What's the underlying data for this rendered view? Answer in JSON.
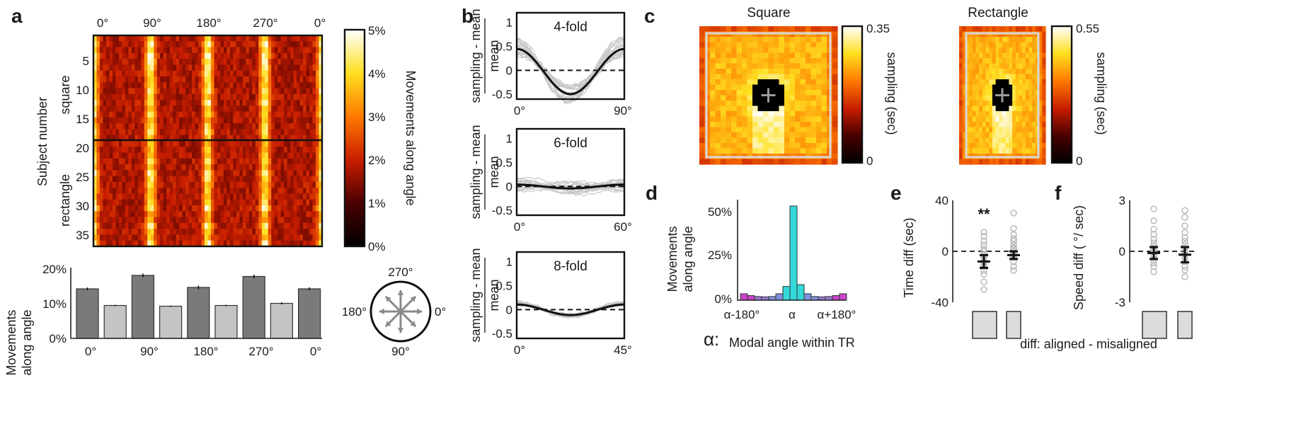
{
  "panels": {
    "a": "a",
    "b": "b",
    "c": "c",
    "d": "d",
    "e": "e",
    "f": "f"
  },
  "colors": {
    "dark_bar": "#7a7a7a",
    "light_bar": "#c4c4c4",
    "cyan": "#33d9d9",
    "magenta": "#cc44cc",
    "blue": "#7f90da",
    "trace": "#c8c8c8"
  },
  "chart_data": [
    {
      "id": "a-heatmap",
      "type": "heatmap",
      "top_ticks": [
        "0°",
        "90°",
        "180°",
        "270°",
        "0°"
      ],
      "ylabel": "Subject number",
      "group_labels": [
        "square",
        "rectangle"
      ],
      "y_ticks": [
        "5",
        "10",
        "15",
        "20",
        "25",
        "30",
        "35"
      ],
      "subjects": 36,
      "split_after": 18,
      "peak_angles_deg": [
        0,
        90,
        180,
        270,
        360
      ],
      "colorbar": {
        "ticks": [
          "5%",
          "4%",
          "3%",
          "2%",
          "1%",
          "0%"
        ],
        "label": "Movements along angle"
      }
    },
    {
      "id": "a-bar",
      "type": "bar",
      "ylabel": [
        "Movements",
        "along angle"
      ],
      "y_ticks": [
        "20%",
        "10%",
        "0%"
      ],
      "ylim": [
        0,
        20
      ],
      "categories": [
        "0°",
        "45°",
        "90°",
        "135°",
        "180°",
        "225°",
        "270°",
        "315°",
        "0°"
      ],
      "x_ticks": [
        "0°",
        "90°",
        "180°",
        "270°",
        "0°"
      ],
      "values": [
        14.0,
        9.3,
        17.8,
        9.1,
        14.4,
        9.3,
        17.5,
        9.9,
        14.0
      ],
      "errors": [
        0.4,
        0.2,
        0.5,
        0.2,
        0.5,
        0.2,
        0.5,
        0.3,
        0.4
      ],
      "compass": {
        "top": "270°",
        "left": "180°",
        "right": "0°",
        "bottom": "90°"
      }
    },
    {
      "id": "b-folds",
      "type": "line",
      "ylabel": [
        "sampling - mean",
        "mean"
      ],
      "y_ticks": [
        "1",
        "0.5",
        "0",
        "-0.5"
      ],
      "ylim": [
        -0.6,
        1.2
      ],
      "plots": [
        {
          "title": "4-fold",
          "x_ticks": [
            "0°",
            "90°"
          ],
          "amplitude": 0.47,
          "offset": 0.13
        },
        {
          "title": "6-fold",
          "x_ticks": [
            "0°",
            "60°"
          ],
          "amplitude": 0.04,
          "offset": 0.01
        },
        {
          "title": "8-fold",
          "x_ticks": [
            "0°",
            "45°"
          ],
          "amplitude": 0.11,
          "offset": 0.02
        }
      ]
    },
    {
      "id": "c-maps",
      "type": "heatmap",
      "maps": [
        {
          "title": "Square",
          "colorbar_ticks": [
            "0.35",
            "0"
          ],
          "colorbar_label": "sampling (sec)",
          "vmax": 0.35
        },
        {
          "title": "Rectangle",
          "colorbar_ticks": [
            "0.55",
            "0"
          ],
          "colorbar_label": "sampling (sec)",
          "vmax": 0.55
        }
      ]
    },
    {
      "id": "d-hist",
      "type": "bar",
      "ylabel": [
        "Movements",
        "along angle"
      ],
      "y_ticks": [
        "50%",
        "25%",
        "0%"
      ],
      "ylim": [
        0,
        55
      ],
      "x_ticks": [
        "α-180°",
        "α",
        "α+180°"
      ],
      "values": [
        3.5,
        2.5,
        2.0,
        1.8,
        2.0,
        3.5,
        7.5,
        51.5,
        8.5,
        3.5,
        2.0,
        1.8,
        2.0,
        2.5,
        3.5
      ],
      "xlabel_symbol": "α:",
      "xlabel": "Modal angle within TR"
    },
    {
      "id": "e-time",
      "type": "scatter",
      "ylabel": "Time diff (sec)",
      "y_ticks": [
        "40",
        "0",
        "-40"
      ],
      "ylim": [
        -40,
        40
      ],
      "significance": "**",
      "means": [
        -8,
        -3
      ],
      "errors": [
        5,
        3
      ],
      "points": [
        [
          -30,
          -24,
          -18,
          -15,
          -12,
          -10,
          -8,
          -5,
          -3,
          0,
          2,
          5,
          8,
          12,
          15
        ],
        [
          -15,
          -12,
          -8,
          -5,
          -3,
          -2,
          0,
          2,
          3,
          5,
          8,
          10,
          13,
          18,
          30
        ]
      ]
    },
    {
      "id": "f-speed",
      "type": "scatter",
      "ylabel": "Speed diff ( °/ sec)",
      "y_ticks": [
        "3",
        "0",
        "-3"
      ],
      "ylim": [
        -3,
        3
      ],
      "means": [
        -0.1,
        -0.2
      ],
      "errors": [
        0.35,
        0.45
      ],
      "points": [
        [
          -1.2,
          -0.9,
          -0.7,
          -0.5,
          -0.3,
          -0.2,
          0,
          0.1,
          0.3,
          0.5,
          0.7,
          1.0,
          1.3,
          1.8,
          2.5
        ],
        [
          -1.5,
          -1.1,
          -0.9,
          -0.6,
          -0.4,
          -0.2,
          0,
          0.2,
          0.4,
          0.6,
          0.8,
          1.1,
          1.5,
          2.0,
          2.4
        ]
      ],
      "shared_xlabel": "diff: aligned - misaligned"
    }
  ]
}
